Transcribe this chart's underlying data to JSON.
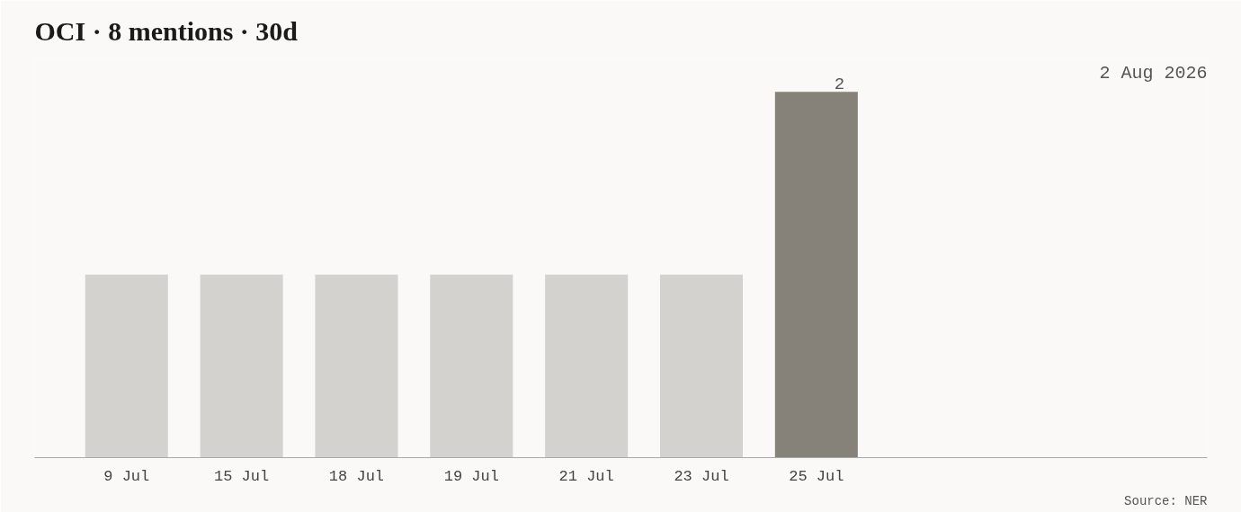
{
  "chart_data": {
    "type": "bar",
    "title": "OCI · 8 mentions · 30d",
    "subtitle": "2 Aug 2026",
    "categories": [
      "9 Jul",
      "15 Jul",
      "18 Jul",
      "19 Jul",
      "21 Jul",
      "23 Jul",
      "25 Jul"
    ],
    "values": [
      1,
      1,
      1,
      1,
      1,
      1,
      2
    ],
    "colors": [
      "#d3d2ce",
      "#d3d2ce",
      "#d3d2ce",
      "#d3d2ce",
      "#d3d2ce",
      "#d3d2ce",
      "#878279"
    ],
    "value_labels": [
      null,
      null,
      null,
      null,
      null,
      null,
      "2"
    ],
    "annotations": [
      "Source: NER"
    ],
    "grid": false
  }
}
